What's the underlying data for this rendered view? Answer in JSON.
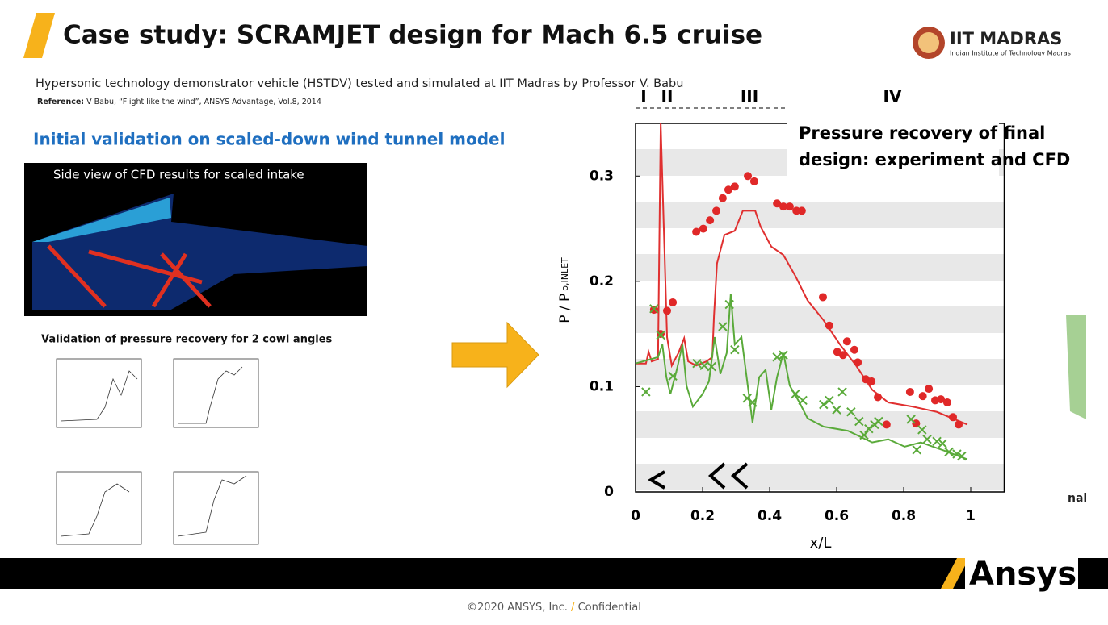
{
  "header": {
    "title": "Case study: SCRAMJET design for Mach 6.5 cruise",
    "logo": "IIT MADRAS",
    "logo_subtitle": "Indian Institute of Technology Madras"
  },
  "subtitle": "Hypersonic technology demonstrator vehicle (HSTDV) tested and simulated at IIT Madras by Professor V. Babu",
  "reference": {
    "label": "Reference:",
    "text": "V Babu, “Flight like the wind”, ANSYS Advantage, Vol.8, 2014"
  },
  "section_title": "Initial validation on scaled-down wind tunnel model",
  "cfd_caption": "Side view of CFD results for scaled intake",
  "validation_label": "Validation of pressure recovery for 2 cowl angles",
  "chart": {
    "type": "scatter",
    "annotation": [
      "Pressure recovery of final",
      "design: experiment and CFD"
    ],
    "x_label": "x/L",
    "y_label": "P / P",
    "y_label_sub": "o,INLET",
    "zones": [
      "I",
      "II",
      "III",
      "IV"
    ],
    "xlim": [
      0,
      1.1
    ],
    "ylim": [
      0,
      0.35
    ],
    "xticks": [
      0,
      0.2,
      0.4,
      0.6,
      0.8,
      1
    ],
    "yticks": [
      0,
      0.1,
      0.2,
      0.3
    ],
    "bands": true,
    "series": [
      {
        "style": "line",
        "color": "#e03030",
        "x": [
          0,
          0.031,
          0.039,
          0.048,
          0.067,
          0.075,
          0.094,
          0.108,
          0.128,
          0.145,
          0.157,
          0.181,
          0.212,
          0.229,
          0.234,
          0.243,
          0.265,
          0.296,
          0.32,
          0.357,
          0.373,
          0.405,
          0.441,
          0.477,
          0.513,
          0.561,
          0.61,
          0.658,
          0.706,
          0.754,
          0.827,
          0.899,
          0.99
        ],
        "values": [
          0.122,
          0.122,
          0.133,
          0.124,
          0.126,
          0.35,
          0.147,
          0.12,
          0.132,
          0.146,
          0.124,
          0.12,
          0.124,
          0.128,
          0.167,
          0.217,
          0.244,
          0.248,
          0.267,
          0.267,
          0.252,
          0.233,
          0.225,
          0.205,
          0.182,
          0.163,
          0.14,
          0.12,
          0.097,
          0.085,
          0.081,
          0.076,
          0.064
        ]
      },
      {
        "style": "line",
        "color": "#5aaa3a",
        "x": [
          0,
          0.067,
          0.08,
          0.092,
          0.104,
          0.123,
          0.14,
          0.152,
          0.171,
          0.2,
          0.219,
          0.236,
          0.253,
          0.272,
          0.284,
          0.296,
          0.316,
          0.333,
          0.349,
          0.369,
          0.388,
          0.405,
          0.422,
          0.441,
          0.46,
          0.489,
          0.513,
          0.561,
          0.634,
          0.706,
          0.754,
          0.803,
          0.851,
          0.923,
          0.99
        ],
        "values": [
          0.122,
          0.128,
          0.14,
          0.109,
          0.093,
          0.116,
          0.14,
          0.101,
          0.081,
          0.093,
          0.105,
          0.147,
          0.112,
          0.132,
          0.188,
          0.14,
          0.147,
          0.105,
          0.066,
          0.109,
          0.116,
          0.078,
          0.109,
          0.132,
          0.101,
          0.085,
          0.07,
          0.062,
          0.058,
          0.047,
          0.05,
          0.043,
          0.047,
          0.039,
          0.031
        ]
      },
      {
        "style": "circle",
        "color": "#e02828",
        "x": [
          0.055,
          0.075,
          0.094,
          0.111,
          0.181,
          0.202,
          0.222,
          0.241,
          0.26,
          0.277,
          0.296,
          0.335,
          0.354,
          0.422,
          0.441,
          0.46,
          0.48,
          0.496,
          0.559,
          0.578,
          0.602,
          0.619,
          0.631,
          0.653,
          0.663,
          0.687,
          0.704,
          0.723,
          0.749,
          0.819,
          0.837,
          0.857,
          0.875,
          0.894,
          0.911,
          0.93,
          0.947,
          0.964
        ],
        "values": [
          0.173,
          0.15,
          0.172,
          0.18,
          0.247,
          0.25,
          0.258,
          0.267,
          0.279,
          0.287,
          0.29,
          0.3,
          0.295,
          0.274,
          0.271,
          0.271,
          0.267,
          0.267,
          0.185,
          0.158,
          0.133,
          0.13,
          0.143,
          0.135,
          0.123,
          0.107,
          0.105,
          0.09,
          0.064,
          0.095,
          0.065,
          0.091,
          0.098,
          0.087,
          0.088,
          0.085,
          0.071,
          0.064
        ]
      },
      {
        "style": "cross",
        "color": "#5aaa3a",
        "x": [
          0.031,
          0.055,
          0.075,
          0.111,
          0.183,
          0.205,
          0.227,
          0.26,
          0.28,
          0.296,
          0.333,
          0.349,
          0.422,
          0.441,
          0.477,
          0.499,
          0.561,
          0.578,
          0.6,
          0.617,
          0.643,
          0.667,
          0.682,
          0.696,
          0.713,
          0.725,
          0.822,
          0.839,
          0.855,
          0.87,
          0.899,
          0.916,
          0.935,
          0.959,
          0.973
        ],
        "values": [
          0.095,
          0.174,
          0.149,
          0.11,
          0.122,
          0.12,
          0.119,
          0.157,
          0.178,
          0.135,
          0.089,
          0.085,
          0.128,
          0.13,
          0.093,
          0.087,
          0.083,
          0.087,
          0.078,
          0.095,
          0.076,
          0.067,
          0.054,
          0.06,
          0.064,
          0.067,
          0.069,
          0.04,
          0.059,
          0.05,
          0.048,
          0.046,
          0.038,
          0.036,
          0.034
        ]
      }
    ]
  },
  "partial_text": "nal",
  "footer": {
    "copyright": "©2020 ANSYS, Inc.",
    "separator": "/",
    "confidential": "Confidential",
    "brand": "Ansys"
  }
}
